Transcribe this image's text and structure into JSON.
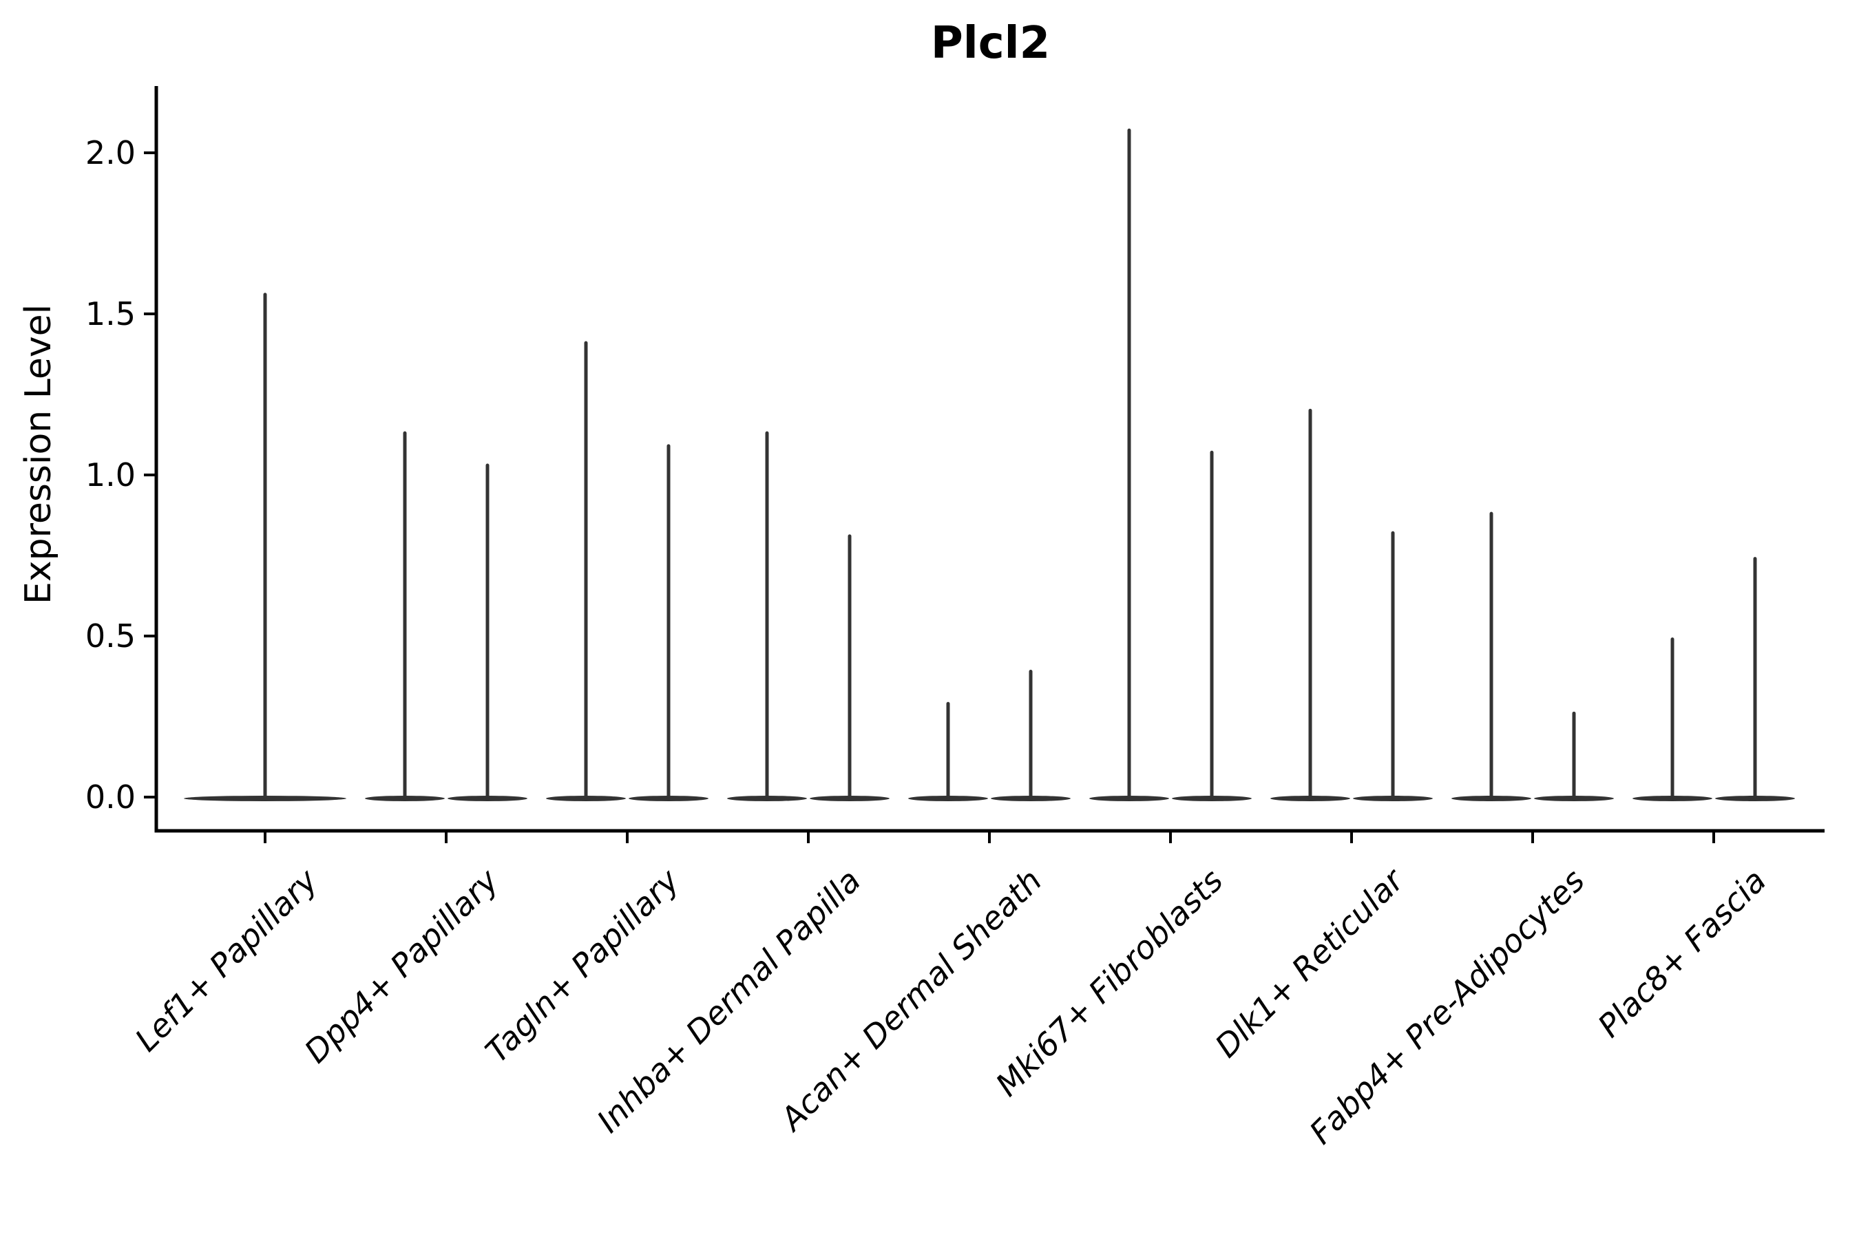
{
  "chart_data": {
    "type": "violin",
    "title": "Plcl2",
    "ylabel": "Expression Level",
    "xlabel": "",
    "legend": "none",
    "grid": false,
    "ylim": [
      -0.11,
      2.21
    ],
    "yticks": [
      {
        "label": "0.0",
        "value": 0.0
      },
      {
        "label": "0.5",
        "value": 0.5
      },
      {
        "label": "1.0",
        "value": 1.0
      },
      {
        "label": "1.5",
        "value": 1.5
      },
      {
        "label": "2.0",
        "value": 2.0
      }
    ],
    "categories": [
      "Lef1+ Papillary",
      "Dpp4+ Papillary",
      "Tagln+ Papillary",
      "Inhba+ Dermal Papilla",
      "Acan+ Dermal Sheath",
      "Mki67+ Fibroblasts",
      "Dlk1+ Reticular",
      "Fabp4+ Pre-Adipocytes",
      "Plac8+ Fascia"
    ],
    "violins": [
      {
        "category": "Lef1+ Papillary",
        "maxima": [
          1.56
        ],
        "baseline": 0.0
      },
      {
        "category": "Dpp4+ Papillary",
        "maxima": [
          1.13,
          1.03
        ],
        "baseline": 0.0
      },
      {
        "category": "Tagln+ Papillary",
        "maxima": [
          1.41,
          1.09
        ],
        "baseline": 0.0
      },
      {
        "category": "Inhba+ Dermal Papilla",
        "maxima": [
          1.13,
          0.81
        ],
        "baseline": 0.0
      },
      {
        "category": "Acan+ Dermal Sheath",
        "maxima": [
          0.29,
          0.39
        ],
        "baseline": 0.0
      },
      {
        "category": "Mki67+ Fibroblasts",
        "maxima": [
          2.07,
          1.07
        ],
        "baseline": 0.0
      },
      {
        "category": "Dlk1+ Reticular",
        "maxima": [
          1.2,
          0.82
        ],
        "baseline": 0.0
      },
      {
        "category": "Fabp4+ Pre-Adipocytes",
        "maxima": [
          0.88,
          0.26
        ],
        "baseline": 0.0
      },
      {
        "category": "Plac8+ Fascia",
        "maxima": [
          0.49,
          0.74
        ],
        "baseline": 0.0
      }
    ],
    "colors": {
      "violin": "#333333",
      "axis": "#000000",
      "text": "#000000",
      "background": "#ffffff"
    }
  }
}
